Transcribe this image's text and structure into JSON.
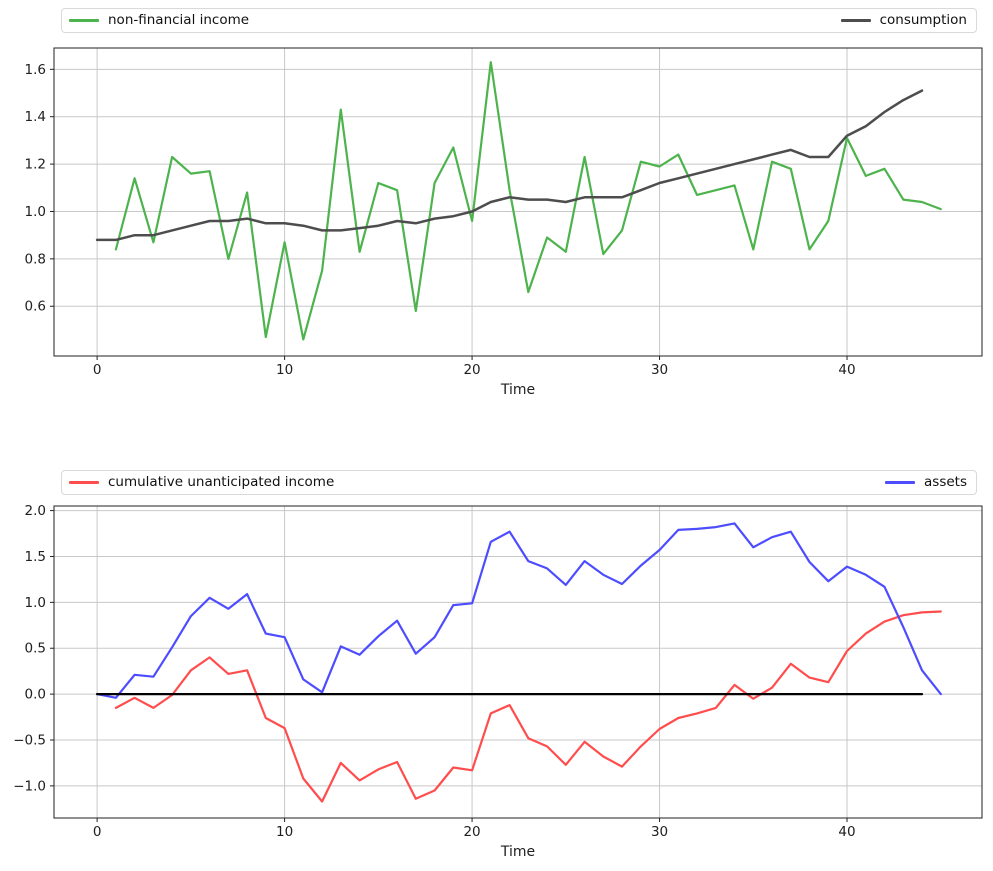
{
  "figure": {
    "background": "#ffffff",
    "grid_color": "#c8c8c8",
    "spine_color": "#222222",
    "tick_label_color": "#202020"
  },
  "chart_data": [
    {
      "type": "line",
      "title": "",
      "xlabel": "Time",
      "ylabel": "",
      "grid": true,
      "legend_position": "above axes, items spread left and right",
      "xlim": [
        -2.3,
        47.2
      ],
      "ylim": [
        0.39,
        1.69
      ],
      "xticks": [
        0,
        10,
        20,
        30,
        40
      ],
      "xtick_labels": [
        "0",
        "10",
        "20",
        "30",
        "40"
      ],
      "yticks": [
        0.6,
        0.8,
        1.0,
        1.2,
        1.4,
        1.6
      ],
      "ytick_labels": [
        "0.6",
        "0.8",
        "1.0",
        "1.2",
        "1.4",
        "1.6"
      ],
      "series": [
        {
          "name": "non-financial income",
          "color": "#4db34d",
          "width": 2.2,
          "x_start": 1,
          "values": [
            0.84,
            1.14,
            0.87,
            1.23,
            1.16,
            1.17,
            0.8,
            1.08,
            0.47,
            0.87,
            0.46,
            0.75,
            1.43,
            0.83,
            1.12,
            1.09,
            0.58,
            1.12,
            1.27,
            0.96,
            1.63,
            1.09,
            0.66,
            0.89,
            0.83,
            1.23,
            0.82,
            0.92,
            1.21,
            1.19,
            1.24,
            1.07,
            1.09,
            1.11,
            0.84,
            1.21,
            1.18,
            0.84,
            0.96,
            1.31,
            1.15,
            1.18,
            1.05,
            1.04,
            1.01
          ]
        },
        {
          "name": "consumption",
          "color": "#4d4d4d",
          "width": 2.5,
          "x_start": 0,
          "values": [
            0.88,
            0.88,
            0.9,
            0.9,
            0.92,
            0.94,
            0.96,
            0.96,
            0.97,
            0.95,
            0.95,
            0.94,
            0.92,
            0.92,
            0.93,
            0.94,
            0.96,
            0.95,
            0.97,
            0.98,
            1.0,
            1.04,
            1.06,
            1.05,
            1.05,
            1.04,
            1.06,
            1.06,
            1.06,
            1.09,
            1.12,
            1.14,
            1.16,
            1.18,
            1.2,
            1.22,
            1.24,
            1.26,
            1.23,
            1.23,
            1.32,
            1.36,
            1.42,
            1.47,
            1.51
          ]
        }
      ]
    },
    {
      "type": "line",
      "title": "",
      "xlabel": "Time",
      "ylabel": "",
      "grid": true,
      "legend_position": "above axes, items spread left and right",
      "xlim": [
        -2.3,
        47.2
      ],
      "ylim": [
        -1.35,
        2.05
      ],
      "xticks": [
        0,
        10,
        20,
        30,
        40
      ],
      "xtick_labels": [
        "0",
        "10",
        "20",
        "30",
        "40"
      ],
      "yticks": [
        -1.0,
        -0.5,
        0.0,
        0.5,
        1.0,
        1.5,
        2.0
      ],
      "ytick_labels": [
        "−1.0",
        "−0.5",
        "0.0",
        "0.5",
        "1.0",
        "1.5",
        "2.0"
      ],
      "series": [
        {
          "name": "cumulative unanticipated income",
          "color": "#ff4d4d",
          "width": 2.2,
          "x_start": 1,
          "values": [
            -0.15,
            -0.04,
            -0.15,
            -0.01,
            0.26,
            0.4,
            0.22,
            0.26,
            -0.26,
            -0.37,
            -0.92,
            -1.17,
            -0.75,
            -0.94,
            -0.82,
            -0.74,
            -1.14,
            -1.05,
            -0.8,
            -0.83,
            -0.21,
            -0.12,
            -0.48,
            -0.57,
            -0.77,
            -0.52,
            -0.68,
            -0.79,
            -0.57,
            -0.38,
            -0.26,
            -0.21,
            -0.15,
            0.1,
            -0.05,
            0.07,
            0.33,
            0.18,
            0.13,
            0.47,
            0.66,
            0.79,
            0.86,
            0.89,
            0.9
          ]
        },
        {
          "name": "assets",
          "color": "#4d4dff",
          "width": 2.2,
          "x_start": 0,
          "values": [
            0.0,
            -0.04,
            0.21,
            0.19,
            0.51,
            0.85,
            1.05,
            0.93,
            1.09,
            0.66,
            0.62,
            0.16,
            0.02,
            0.52,
            0.43,
            0.63,
            0.8,
            0.44,
            0.62,
            0.97,
            0.99,
            1.66,
            1.77,
            1.45,
            1.37,
            1.19,
            1.45,
            1.3,
            1.2,
            1.4,
            1.57,
            1.79,
            1.8,
            1.82,
            1.86,
            1.6,
            1.71,
            1.77,
            1.44,
            1.23,
            1.39,
            1.3,
            1.17,
            0.73,
            0.26,
            0.0
          ]
        },
        {
          "name": "zero line",
          "color": "#000000",
          "width": 2.2,
          "x": [
            0,
            44
          ],
          "values": [
            0,
            0
          ]
        }
      ]
    }
  ]
}
